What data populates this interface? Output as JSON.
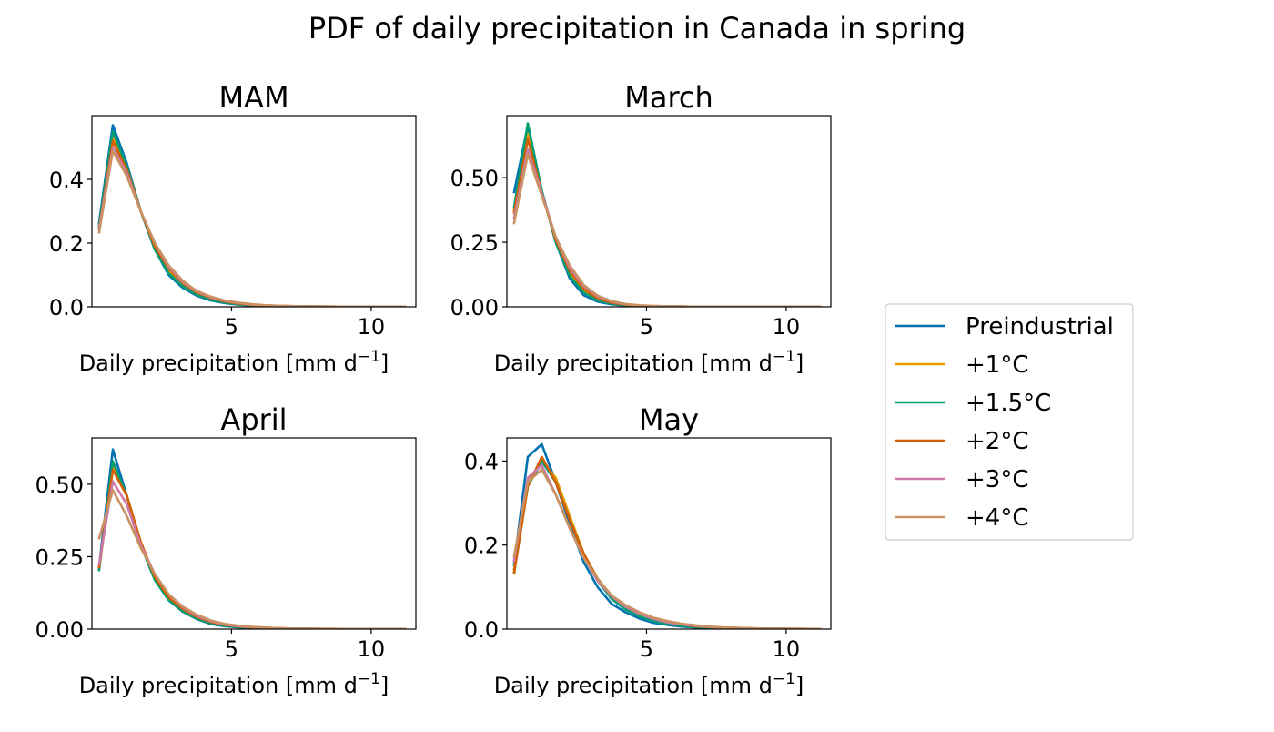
{
  "figure": {
    "title": "PDF of daily precipitation in Canada in spring"
  },
  "legend": {
    "placement": "right",
    "entries": [
      {
        "label": "Preindustrial",
        "color": "#0072B2"
      },
      {
        "label": "+1°C",
        "color": "#E69F00"
      },
      {
        "label": "+1.5°C",
        "color": "#009E73"
      },
      {
        "label": "+2°C",
        "color": "#D55E00"
      },
      {
        "label": "+3°C",
        "color": "#CC79A7"
      },
      {
        "label": "+4°C",
        "color": "#CA9161"
      }
    ]
  },
  "chart_data": [
    {
      "type": "line",
      "title": "MAM",
      "xlabel": "Daily precipitation [mm d",
      "xlabel_sup": "−1",
      "xlabel_close": "]",
      "xlim": [
        0.0,
        11.6
      ],
      "ylim": [
        0.0,
        0.6
      ],
      "xticks": [
        5,
        10
      ],
      "xtick_labels": [
        "5",
        "10"
      ],
      "yticks": [
        0.0,
        0.2,
        0.4
      ],
      "ytick_labels": [
        "0.0",
        "0.2",
        "0.4"
      ],
      "x": [
        0.25,
        0.75,
        1.25,
        1.75,
        2.25,
        2.75,
        3.25,
        3.75,
        4.25,
        4.75,
        5.25,
        5.75,
        6.25,
        6.75,
        7.25,
        7.75,
        8.25,
        8.75,
        9.25,
        9.75,
        10.25,
        10.75,
        11.25
      ],
      "series": [
        {
          "name": "Preindustrial",
          "values": [
            0.26,
            0.57,
            0.45,
            0.3,
            0.18,
            0.1,
            0.06,
            0.035,
            0.02,
            0.012,
            0.007,
            0.004,
            0.003,
            0.002,
            0.001,
            0.001,
            0.0005,
            0.0005,
            0.0003,
            0.0003,
            0.0002,
            0.0002,
            0.0001
          ]
        },
        {
          "name": "+1°C",
          "values": [
            0.24,
            0.53,
            0.44,
            0.3,
            0.19,
            0.115,
            0.07,
            0.04,
            0.025,
            0.015,
            0.009,
            0.005,
            0.003,
            0.002,
            0.0015,
            0.001,
            0.0006,
            0.0005,
            0.0003,
            0.0003,
            0.0002,
            0.0002,
            0.0001
          ]
        },
        {
          "name": "+1.5°C",
          "values": [
            0.25,
            0.55,
            0.44,
            0.3,
            0.18,
            0.105,
            0.065,
            0.038,
            0.022,
            0.013,
            0.008,
            0.004,
            0.003,
            0.002,
            0.001,
            0.001,
            0.0005,
            0.0005,
            0.0003,
            0.0003,
            0.0002,
            0.0002,
            0.0001
          ]
        },
        {
          "name": "+2°C",
          "values": [
            0.24,
            0.52,
            0.43,
            0.3,
            0.19,
            0.12,
            0.075,
            0.045,
            0.028,
            0.017,
            0.01,
            0.006,
            0.004,
            0.003,
            0.002,
            0.001,
            0.0008,
            0.0006,
            0.0004,
            0.0003,
            0.0002,
            0.0002,
            0.0001
          ]
        },
        {
          "name": "+3°C",
          "values": [
            0.24,
            0.5,
            0.42,
            0.3,
            0.2,
            0.125,
            0.078,
            0.048,
            0.03,
            0.019,
            0.012,
            0.007,
            0.004,
            0.003,
            0.002,
            0.0015,
            0.001,
            0.0007,
            0.0005,
            0.0004,
            0.0003,
            0.0002,
            0.0001
          ]
        },
        {
          "name": "+4°C",
          "values": [
            0.23,
            0.49,
            0.41,
            0.3,
            0.2,
            0.13,
            0.082,
            0.05,
            0.032,
            0.02,
            0.013,
            0.008,
            0.005,
            0.003,
            0.002,
            0.0015,
            0.001,
            0.0008,
            0.0005,
            0.0004,
            0.0003,
            0.0002,
            0.0001
          ]
        }
      ]
    },
    {
      "type": "line",
      "title": "March",
      "xlabel": "Daily precipitation [mm d",
      "xlabel_sup": "−1",
      "xlabel_close": "]",
      "xlim": [
        0.0,
        11.6
      ],
      "ylim": [
        0.0,
        0.74
      ],
      "xticks": [
        5,
        10
      ],
      "xtick_labels": [
        "5",
        "10"
      ],
      "yticks": [
        0.0,
        0.25,
        0.5
      ],
      "ytick_labels": [
        "0.00",
        "0.25",
        "0.50"
      ],
      "x": [
        0.25,
        0.75,
        1.25,
        1.75,
        2.25,
        2.75,
        3.25,
        3.75,
        4.25,
        4.75,
        5.25,
        5.75,
        6.25,
        6.75,
        7.25,
        7.75,
        8.25,
        8.75,
        9.25,
        9.75,
        10.25,
        10.75,
        11.25
      ],
      "series": [
        {
          "name": "Preindustrial",
          "values": [
            0.44,
            0.7,
            0.45,
            0.25,
            0.11,
            0.045,
            0.02,
            0.01,
            0.005,
            0.003,
            0.002,
            0.001,
            0.001,
            0.0005,
            0.0005,
            0.0003,
            0.0002,
            0.0002,
            0.0001,
            0.0001,
            0.0001,
            0.0001,
            0.0001
          ]
        },
        {
          "name": "+1°C",
          "values": [
            0.37,
            0.67,
            0.44,
            0.26,
            0.13,
            0.06,
            0.028,
            0.014,
            0.007,
            0.004,
            0.002,
            0.001,
            0.001,
            0.0005,
            0.0005,
            0.0003,
            0.0002,
            0.0002,
            0.0001,
            0.0001,
            0.0001,
            0.0001,
            0.0001
          ]
        },
        {
          "name": "+1.5°C",
          "values": [
            0.38,
            0.71,
            0.45,
            0.25,
            0.12,
            0.055,
            0.025,
            0.012,
            0.006,
            0.003,
            0.002,
            0.001,
            0.001,
            0.0005,
            0.0005,
            0.0003,
            0.0002,
            0.0002,
            0.0001,
            0.0001,
            0.0001,
            0.0001,
            0.0001
          ]
        },
        {
          "name": "+2°C",
          "values": [
            0.36,
            0.65,
            0.44,
            0.26,
            0.14,
            0.07,
            0.033,
            0.016,
            0.008,
            0.004,
            0.002,
            0.001,
            0.001,
            0.0005,
            0.0005,
            0.0003,
            0.0002,
            0.0002,
            0.0001,
            0.0001,
            0.0001,
            0.0001,
            0.0001
          ]
        },
        {
          "name": "+3°C",
          "values": [
            0.34,
            0.61,
            0.44,
            0.27,
            0.15,
            0.08,
            0.04,
            0.02,
            0.01,
            0.005,
            0.003,
            0.002,
            0.001,
            0.0006,
            0.0005,
            0.0003,
            0.0002,
            0.0002,
            0.0001,
            0.0001,
            0.0001,
            0.0001,
            0.0001
          ]
        },
        {
          "name": "+4°C",
          "values": [
            0.32,
            0.59,
            0.43,
            0.27,
            0.16,
            0.085,
            0.043,
            0.022,
            0.011,
            0.006,
            0.003,
            0.002,
            0.001,
            0.0007,
            0.0005,
            0.0003,
            0.0002,
            0.0002,
            0.0001,
            0.0001,
            0.0001,
            0.0001,
            0.0001
          ]
        }
      ]
    },
    {
      "type": "line",
      "title": "April",
      "xlabel": "Daily precipitation [mm d",
      "xlabel_sup": "−1",
      "xlabel_close": "]",
      "xlim": [
        0.0,
        11.6
      ],
      "ylim": [
        0.0,
        0.66
      ],
      "xticks": [
        5,
        10
      ],
      "xtick_labels": [
        "5",
        "10"
      ],
      "yticks": [
        0.0,
        0.25,
        0.5
      ],
      "ytick_labels": [
        "0.00",
        "0.25",
        "0.50"
      ],
      "x": [
        0.25,
        0.75,
        1.25,
        1.75,
        2.25,
        2.75,
        3.25,
        3.75,
        4.25,
        4.75,
        5.25,
        5.75,
        6.25,
        6.75,
        7.25,
        7.75,
        8.25,
        8.75,
        9.25,
        9.75,
        10.25,
        10.75,
        11.25
      ],
      "series": [
        {
          "name": "Preindustrial",
          "values": [
            0.21,
            0.62,
            0.46,
            0.29,
            0.17,
            0.1,
            0.06,
            0.035,
            0.018,
            0.01,
            0.006,
            0.004,
            0.003,
            0.002,
            0.001,
            0.001,
            0.0005,
            0.0005,
            0.0003,
            0.0003,
            0.0002,
            0.0002,
            0.0001
          ]
        },
        {
          "name": "+1°C",
          "values": [
            0.2,
            0.56,
            0.46,
            0.3,
            0.18,
            0.11,
            0.068,
            0.04,
            0.023,
            0.013,
            0.008,
            0.005,
            0.003,
            0.002,
            0.0015,
            0.001,
            0.0006,
            0.0005,
            0.0003,
            0.0003,
            0.0002,
            0.0002,
            0.0001
          ]
        },
        {
          "name": "+1.5°C",
          "values": [
            0.2,
            0.58,
            0.46,
            0.29,
            0.17,
            0.1,
            0.062,
            0.036,
            0.02,
            0.011,
            0.007,
            0.004,
            0.003,
            0.002,
            0.001,
            0.001,
            0.0005,
            0.0005,
            0.0003,
            0.0003,
            0.0002,
            0.0002,
            0.0001
          ]
        },
        {
          "name": "+2°C",
          "values": [
            0.21,
            0.55,
            0.46,
            0.3,
            0.18,
            0.11,
            0.07,
            0.042,
            0.025,
            0.014,
            0.009,
            0.006,
            0.004,
            0.003,
            0.002,
            0.001,
            0.0008,
            0.0006,
            0.0004,
            0.0003,
            0.0002,
            0.0002,
            0.0001
          ]
        },
        {
          "name": "+3°C",
          "values": [
            0.22,
            0.51,
            0.43,
            0.29,
            0.19,
            0.12,
            0.075,
            0.046,
            0.028,
            0.016,
            0.01,
            0.007,
            0.005,
            0.003,
            0.002,
            0.0015,
            0.001,
            0.0007,
            0.0005,
            0.0004,
            0.0003,
            0.0002,
            0.0001
          ]
        },
        {
          "name": "+4°C",
          "values": [
            0.31,
            0.48,
            0.39,
            0.28,
            0.19,
            0.12,
            0.078,
            0.05,
            0.03,
            0.018,
            0.012,
            0.008,
            0.005,
            0.003,
            0.002,
            0.0015,
            0.001,
            0.0008,
            0.0005,
            0.0004,
            0.0003,
            0.0002,
            0.0001
          ]
        }
      ]
    },
    {
      "type": "line",
      "title": "May",
      "xlabel": "Daily precipitation [mm d",
      "xlabel_sup": "−1",
      "xlabel_close": "]",
      "xlim": [
        0.0,
        11.6
      ],
      "ylim": [
        0.0,
        0.455
      ],
      "xticks": [
        5,
        10
      ],
      "xtick_labels": [
        "5",
        "10"
      ],
      "yticks": [
        0.0,
        0.2,
        0.4
      ],
      "ytick_labels": [
        "0.0",
        "0.2",
        "0.4"
      ],
      "x": [
        0.25,
        0.75,
        1.25,
        1.75,
        2.25,
        2.75,
        3.25,
        3.75,
        4.25,
        4.75,
        5.25,
        5.75,
        6.25,
        6.75,
        7.25,
        7.75,
        8.25,
        8.75,
        9.25,
        9.75,
        10.25,
        10.75,
        11.25
      ],
      "series": [
        {
          "name": "Preindustrial",
          "values": [
            0.15,
            0.41,
            0.44,
            0.35,
            0.25,
            0.16,
            0.1,
            0.06,
            0.04,
            0.025,
            0.015,
            0.01,
            0.006,
            0.004,
            0.003,
            0.002,
            0.0015,
            0.001,
            0.0008,
            0.0005,
            0.0004,
            0.0003,
            0.0002
          ]
        },
        {
          "name": "+1°C",
          "values": [
            0.14,
            0.35,
            0.4,
            0.36,
            0.27,
            0.18,
            0.12,
            0.075,
            0.05,
            0.032,
            0.02,
            0.013,
            0.009,
            0.006,
            0.004,
            0.003,
            0.002,
            0.0015,
            0.001,
            0.0008,
            0.0006,
            0.0004,
            0.0003
          ]
        },
        {
          "name": "+1.5°C",
          "values": [
            0.13,
            0.34,
            0.4,
            0.35,
            0.26,
            0.18,
            0.115,
            0.072,
            0.047,
            0.03,
            0.019,
            0.012,
            0.008,
            0.005,
            0.0035,
            0.0025,
            0.0018,
            0.0012,
            0.0009,
            0.0007,
            0.0005,
            0.0004,
            0.0003
          ]
        },
        {
          "name": "+2°C",
          "values": [
            0.13,
            0.34,
            0.41,
            0.35,
            0.26,
            0.18,
            0.12,
            0.078,
            0.055,
            0.038,
            0.025,
            0.016,
            0.011,
            0.007,
            0.005,
            0.0035,
            0.0025,
            0.0018,
            0.0012,
            0.0009,
            0.0007,
            0.0005,
            0.0004
          ]
        },
        {
          "name": "+3°C",
          "values": [
            0.16,
            0.36,
            0.39,
            0.32,
            0.24,
            0.17,
            0.115,
            0.078,
            0.053,
            0.036,
            0.024,
            0.016,
            0.011,
            0.008,
            0.005,
            0.0035,
            0.0025,
            0.0018,
            0.0012,
            0.0009,
            0.0007,
            0.0005,
            0.0004
          ]
        },
        {
          "name": "+4°C",
          "values": [
            0.17,
            0.35,
            0.38,
            0.32,
            0.24,
            0.17,
            0.12,
            0.08,
            0.057,
            0.04,
            0.027,
            0.019,
            0.013,
            0.009,
            0.006,
            0.004,
            0.003,
            0.002,
            0.0015,
            0.001,
            0.0008,
            0.0006,
            0.0004
          ]
        }
      ]
    }
  ]
}
